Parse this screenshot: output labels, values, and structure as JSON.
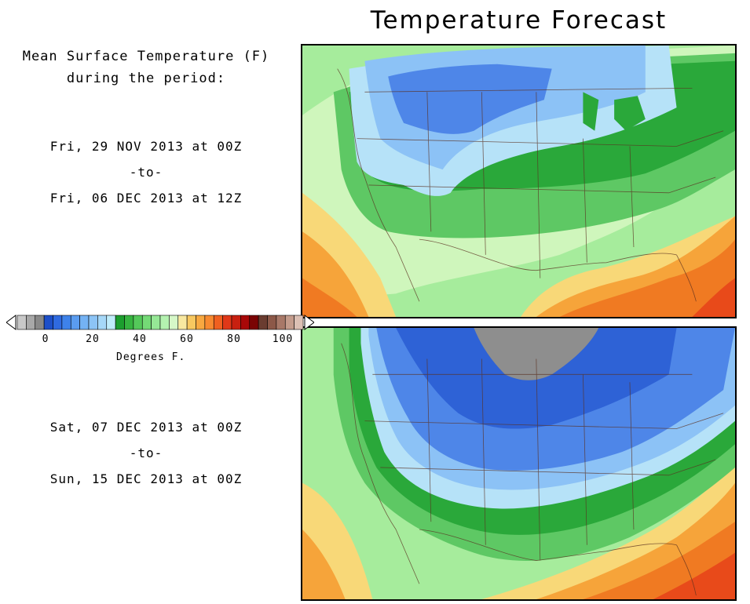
{
  "title": "Temperature Forecast",
  "subtitle_lines": [
    "Mean Surface Temperature (F)",
    "during the period:"
  ],
  "periods": [
    {
      "start": "Fri, 29 NOV 2013 at 00Z",
      "sep": "-to-",
      "end": "Fri, 06 DEC 2013 at 12Z"
    },
    {
      "start": "Sat, 07 DEC 2013 at 00Z",
      "sep": "-to-",
      "end": "Sun, 15 DEC 2013 at 00Z"
    }
  ],
  "legend": {
    "tick_labels": [
      "0",
      "20",
      "40",
      "60",
      "80",
      "100"
    ],
    "unit_label": "Degrees F.",
    "colors": [
      "#c8c8c8",
      "#a8a8a8",
      "#888888",
      "#1d4fc8",
      "#2f6ae0",
      "#3e82ea",
      "#5a9cf0",
      "#74b2f4",
      "#8cc4f6",
      "#a6d8f8",
      "#c0ecfa",
      "#1c9e2e",
      "#36b440",
      "#54c85a",
      "#74da76",
      "#96e896",
      "#b4f2b0",
      "#d6f8c8",
      "#f8e8a0",
      "#f8c860",
      "#f8a840",
      "#f88a30",
      "#f06020",
      "#e03818",
      "#c82010",
      "#a80808",
      "#7a0404",
      "#6a3c30",
      "#8c5848",
      "#a87868",
      "#c49c8c",
      "#dcc0b4"
    ]
  },
  "map_colors": {
    "gray": "#8e8e8e",
    "dark_blue": "#2e62d6",
    "mid_blue": "#4e86e8",
    "light_blue": "#8cc2f6",
    "pale_blue": "#b6e2f8",
    "dark_green": "#2aa83a",
    "green": "#5ec864",
    "light_green": "#a6ec9c",
    "pale_green": "#cff6bc",
    "yellow": "#f8d878",
    "orange": "#f6a43a",
    "dark_orange": "#f07a22",
    "red": "#e84a1a"
  }
}
